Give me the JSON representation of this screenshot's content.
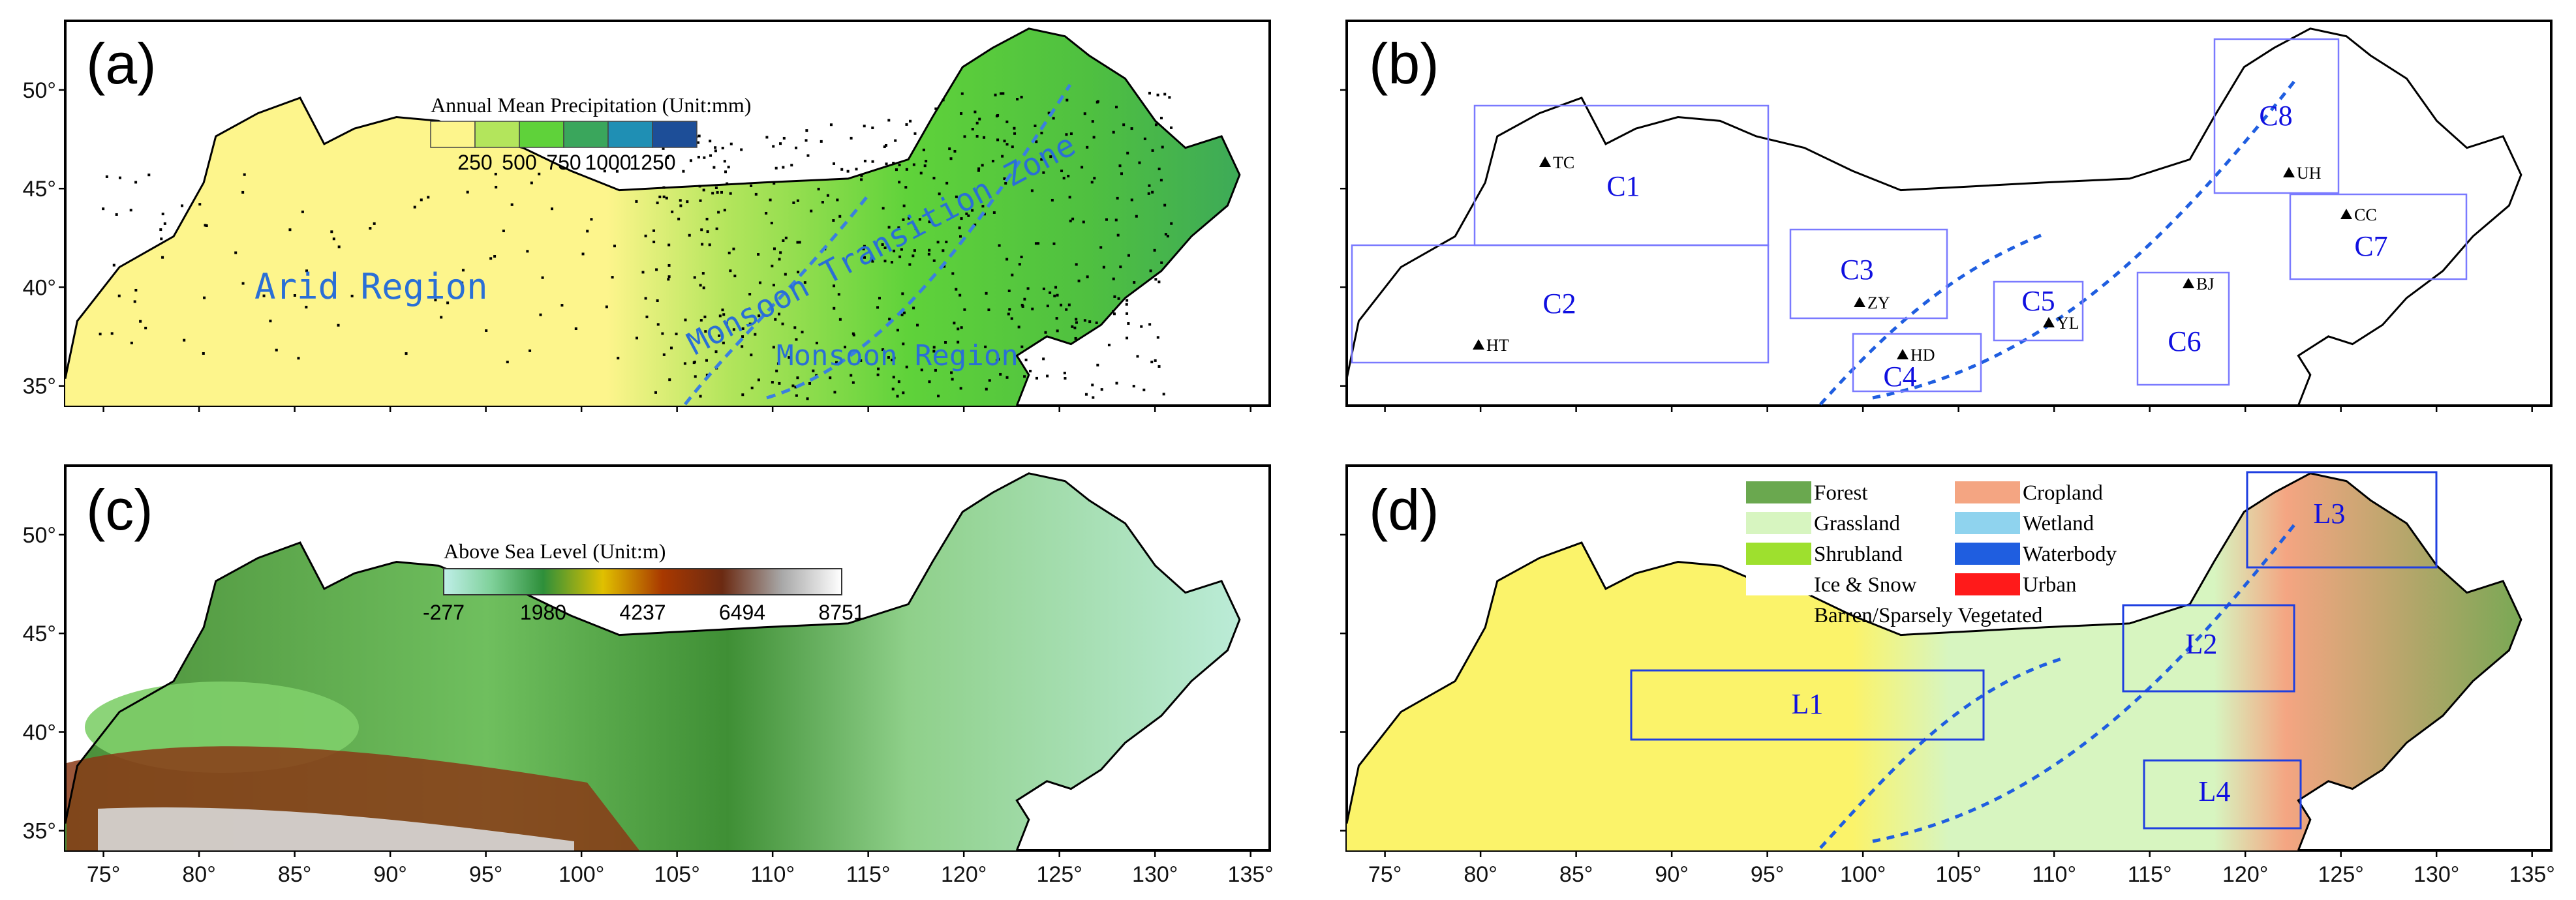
{
  "panels": {
    "a": {
      "label": "(a)",
      "legend": {
        "title": "Annual Mean Precipitation (Unit:mm)",
        "ticks": [
          "250",
          "500",
          "750",
          "1000",
          "1250"
        ],
        "colors": [
          "#fdf58c",
          "#b3e55c",
          "#5fd23a",
          "#3aa65c",
          "#1f8fb4",
          "#1d4e98"
        ]
      },
      "regions": {
        "arid": "Arid Region",
        "transition": "Monsoon Transition Zone",
        "monsoon": "Monsoon Region"
      }
    },
    "b": {
      "label": "(b)",
      "cells": [
        "C1",
        "C2",
        "C3",
        "C4",
        "C5",
        "C6",
        "C7",
        "C8"
      ],
      "stations": [
        "TC",
        "HT",
        "ZY",
        "HD",
        "YL",
        "BJ",
        "CC",
        "UH"
      ]
    },
    "c": {
      "label": "(c)",
      "legend": {
        "title": "Above Sea Level (Unit:m)",
        "ticks": [
          "-277",
          "1980",
          "4237",
          "6494",
          "8751"
        ]
      }
    },
    "d": {
      "label": "(d)",
      "legend": {
        "items": [
          {
            "label": "Forest",
            "color": "#6aa84f"
          },
          {
            "label": "Cropland",
            "color": "#f4a582"
          },
          {
            "label": "Grassland",
            "color": "#d7f5c0"
          },
          {
            "label": "Wetland",
            "color": "#8fd3ee"
          },
          {
            "label": "Shrubland",
            "color": "#9ee02e"
          },
          {
            "label": "Waterbody",
            "color": "#1f5ee0"
          },
          {
            "label": "Ice & Snow",
            "color": "#ffffff"
          },
          {
            "label": "Urban",
            "color": "#ff1a1a"
          },
          {
            "label": "Barren/Sparsely Vegetated",
            "color": "#fbf36a"
          }
        ]
      },
      "boxes": [
        "L1",
        "L2",
        "L3",
        "L4"
      ]
    }
  },
  "axes": {
    "lat_ticks": [
      "50°",
      "45°",
      "40°",
      "35°"
    ],
    "lon_ticks": [
      "75°",
      "80°",
      "85°",
      "90°",
      "95°",
      "100°",
      "105°",
      "110°",
      "115°",
      "120°",
      "125°",
      "130°",
      "135°"
    ]
  }
}
